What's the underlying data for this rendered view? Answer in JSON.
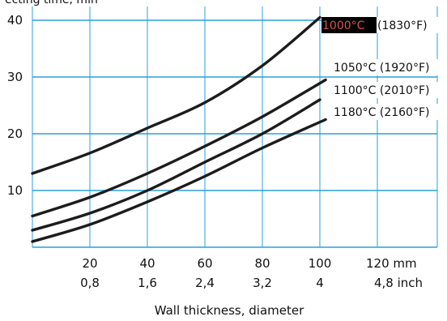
{
  "header": {
    "clipped_text": "ecting time, min"
  },
  "chart_data": {
    "type": "line",
    "title": "",
    "xlabel": "Wall thickness, diameter",
    "ylabel": "",
    "xlim": [
      0,
      140
    ],
    "ylim": [
      0,
      42
    ],
    "grid": true,
    "y_ticks": [
      10,
      20,
      30,
      40
    ],
    "x_ticks_mm": {
      "values": [
        20,
        40,
        60,
        80,
        100,
        120
      ],
      "labels": [
        "20",
        "40",
        "60",
        "80",
        "100",
        "120 mm"
      ]
    },
    "x_ticks_inch": {
      "labels": [
        "0,8",
        "1,6",
        "2,4",
        "3,2",
        "4",
        "4,8 inch"
      ]
    },
    "series": [
      {
        "name": "1000°C (1830°F)",
        "highlighted_part": "1000°C",
        "rest_part": "(1830°F)",
        "x": [
          0,
          20,
          40,
          60,
          80,
          100
        ],
        "y": [
          13,
          16.6,
          21,
          25.5,
          32,
          40.5
        ]
      },
      {
        "name": "1050°C (1920°F)",
        "x": [
          0,
          20,
          40,
          60,
          80,
          102
        ],
        "y": [
          5.5,
          8.8,
          13,
          17.8,
          23,
          29.5
        ]
      },
      {
        "name": "1100°C (2010°F)",
        "x": [
          0,
          20,
          40,
          60,
          80,
          100
        ],
        "y": [
          3,
          6,
          10,
          15,
          20,
          26
        ]
      },
      {
        "name": "1180°C (2160°F)",
        "x": [
          0,
          20,
          40,
          60,
          80,
          102
        ],
        "y": [
          1,
          4,
          8,
          12.5,
          17.5,
          22.5
        ]
      }
    ],
    "colors": {
      "grid": "#2aa0d8",
      "curve": "#1c1c1c",
      "highlight_box": "#000000",
      "highlight_text": "#d9534f"
    }
  }
}
